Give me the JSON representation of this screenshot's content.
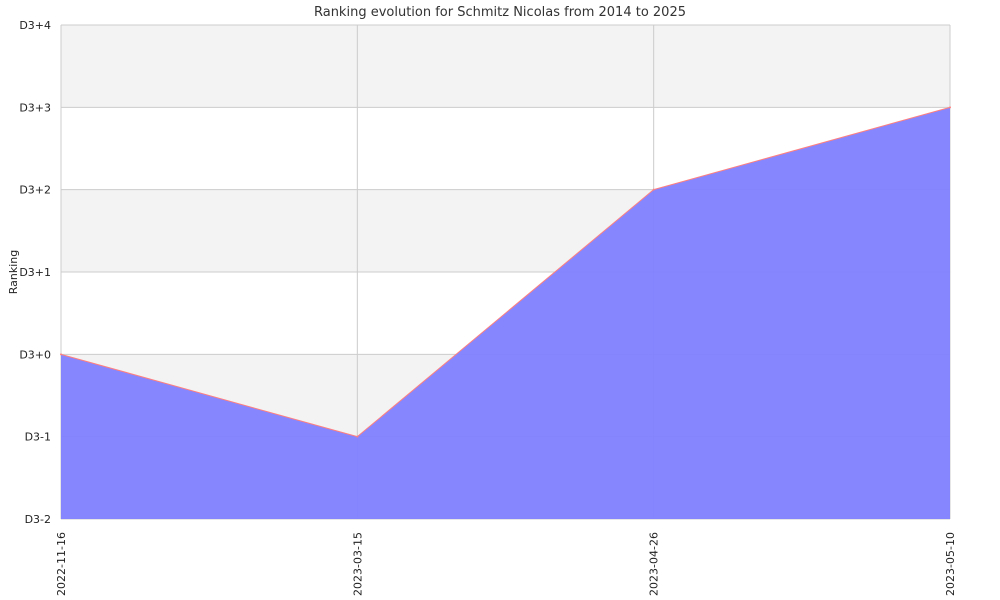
{
  "chart_data": {
    "type": "area",
    "title": "Ranking evolution for Schmitz Nicolas from 2014 to 2025",
    "xlabel": "",
    "ylabel": "Ranking",
    "x": [
      "2022-11-16",
      "2023-03-15",
      "2023-04-26",
      "2023-05-10"
    ],
    "y_ticks": [
      "D3-2",
      "D3-1",
      "D3+0",
      "D3+1",
      "D3+2",
      "D3+3",
      "D3+4"
    ],
    "series": [
      {
        "values": [
          2,
          1,
          4,
          5
        ]
      }
    ],
    "ylim": [
      0,
      6
    ],
    "grid": true,
    "colors": {
      "area_fill": "#8080ff",
      "line": "#ff7f7f",
      "band_alt": "#f3f3f3",
      "grid": "#cccccc"
    }
  }
}
